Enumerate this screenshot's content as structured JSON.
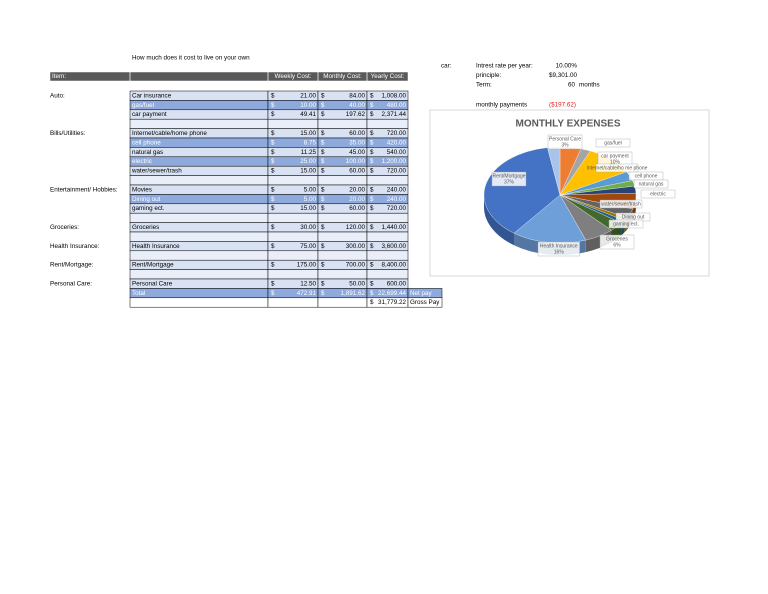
{
  "title": "How much does it cost to live on your own",
  "table": {
    "header": [
      "Item:",
      "Weekly Cost:",
      "Monthly Cost:",
      "Yearly Cost:"
    ],
    "currency": "$",
    "sections": [
      {
        "label": "Auto:",
        "rows": [
          {
            "item": "Car insurance",
            "weekly": "21.00",
            "monthly": "84.00",
            "yearly": "1,008.00"
          },
          {
            "item": "gas/fuel",
            "weekly": "10.00",
            "monthly": "40.00",
            "yearly": "480.00",
            "highlight": true
          },
          {
            "item": "car payment",
            "weekly": "49.41",
            "monthly": "197.62",
            "yearly": "2,371.44"
          }
        ]
      },
      {
        "label": "Bills/Utilities:",
        "rows": [
          {
            "item": "Internet/cable/home phone",
            "weekly": "15.00",
            "monthly": "60.00",
            "yearly": "720.00"
          },
          {
            "item": "cell phone",
            "weekly": "8.75",
            "monthly": "35.00",
            "yearly": "420.00",
            "highlight": true
          },
          {
            "item": "natural gas",
            "weekly": "11.25",
            "monthly": "45.00",
            "yearly": "540.00"
          },
          {
            "item": "electric",
            "weekly": "25.00",
            "monthly": "100.00",
            "yearly": "1,200.00",
            "highlight": true
          },
          {
            "item": "water/sewer/trash",
            "weekly": "15.00",
            "monthly": "60.00",
            "yearly": "720.00"
          }
        ]
      },
      {
        "label": "Entertainment/ Hobbies:",
        "rows": [
          {
            "item": "Movies",
            "weekly": "5.00",
            "monthly": "20.00",
            "yearly": "240.00"
          },
          {
            "item": "Dining out",
            "weekly": "5.00",
            "monthly": "20.00",
            "yearly": "240.00",
            "highlight": true
          },
          {
            "item": "gaming ect.",
            "weekly": "15.00",
            "monthly": "60.00",
            "yearly": "720.00"
          }
        ]
      },
      {
        "label": "Groceries:",
        "rows": [
          {
            "item": "Groceries",
            "weekly": "30.00",
            "monthly": "120.00",
            "yearly": "1,440.00"
          }
        ]
      },
      {
        "label": "Health Insurance:",
        "rows": [
          {
            "item": "Health Insurance",
            "weekly": "75.00",
            "monthly": "300.00",
            "yearly": "3,600.00"
          }
        ]
      },
      {
        "label": "Rent/Mortgage:",
        "rows": [
          {
            "item": "Rent/Mortgage",
            "weekly": "175.00",
            "monthly": "700.00",
            "yearly": "8,400.00"
          }
        ]
      },
      {
        "label": "Personal Care:",
        "rows": [
          {
            "item": "Personal Care",
            "weekly": "12.50",
            "monthly": "50.00",
            "yearly": "600.00"
          }
        ]
      }
    ],
    "total": {
      "item": "Total",
      "weekly": "472.91",
      "monthly": "1,891.62",
      "yearly": "22,699.44",
      "note": "Net pay"
    },
    "gross": {
      "yearly": "31,779.22",
      "note": "Gross Pay"
    }
  },
  "car": {
    "label": "car:",
    "rows": [
      [
        "Intrest rate per year:",
        "10.00%"
      ],
      [
        "principle:",
        "$9,301.00"
      ],
      [
        "Term:",
        "60",
        "months"
      ]
    ],
    "payment_label": "monthly payments",
    "payment": "($197.62)"
  },
  "pie": {
    "title": "MONTHLY EXPENSES",
    "colors": [
      "#ed7d31",
      "#a5a5a5",
      "#ffc000",
      "#5b9bd5",
      "#70ad47",
      "#264478",
      "#9e480e",
      "#636363",
      "#997300",
      "#255e91",
      "#43682b",
      "#7f7f7f",
      "#6f9fd8",
      "#4472c4",
      "#a9c4eb"
    ],
    "labels": [
      {
        "name": "Personal Care",
        "pct": "3%"
      },
      {
        "name": "gas/fuel"
      },
      {
        "name": "car payment",
        "pct": "10%"
      },
      {
        "name": "Internet/cable/ho me phone"
      },
      {
        "name": "cell phone"
      },
      {
        "name": "natural gas"
      },
      {
        "name": "electric"
      },
      {
        "name": "water/sewer/trash"
      },
      {
        "name": "Dining out"
      },
      {
        "name": "gaming ect."
      },
      {
        "name": "Groceries",
        "pct": "6%"
      },
      {
        "name": "Health Insurance",
        "pct": "16%"
      },
      {
        "name": "Rent/Mortgage",
        "pct": "37%"
      }
    ]
  }
}
